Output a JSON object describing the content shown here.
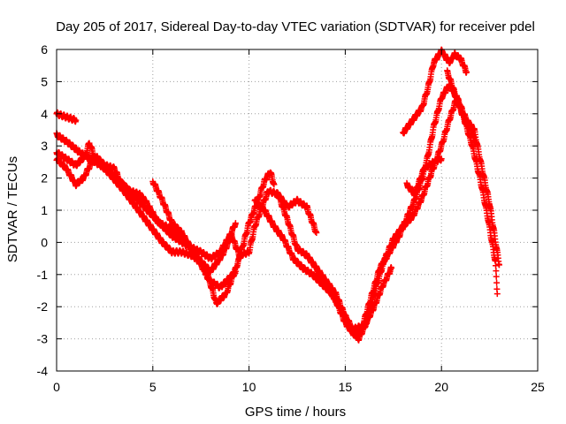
{
  "chart_data": {
    "type": "scatter",
    "title": "Day 205 of 2017, Sidereal Day-to-day VTEC variation (SDTVAR) for receiver pdel",
    "xlabel": "GPS time / hours",
    "ylabel": "SDTVAR / TECUs",
    "xlim": [
      0,
      25
    ],
    "ylim": [
      -4,
      6
    ],
    "xticks": [
      0,
      5,
      10,
      15,
      20,
      25
    ],
    "yticks": [
      -4,
      -3,
      -2,
      -1,
      0,
      1,
      2,
      3,
      4,
      5,
      6
    ],
    "grid": true,
    "marker": "+",
    "series": [
      {
        "name": "satellite tracks",
        "color": "#ff0000",
        "tracks": [
          [
            [
              0.0,
              4.0
            ],
            [
              0.5,
              3.9
            ],
            [
              1.0,
              3.8
            ]
          ],
          [
            [
              0.0,
              3.35
            ],
            [
              0.6,
              3.1
            ],
            [
              1.2,
              2.8
            ],
            [
              2.0,
              2.5
            ],
            [
              2.8,
              2.2
            ],
            [
              3.6,
              1.7
            ],
            [
              4.4,
              1.2
            ],
            [
              5.2,
              0.7
            ],
            [
              6.0,
              0.2
            ],
            [
              6.8,
              -0.1
            ],
            [
              7.5,
              -0.3
            ],
            [
              8.0,
              -0.5
            ],
            [
              8.5,
              -0.3
            ],
            [
              9.0,
              0.2
            ],
            [
              9.3,
              0.6
            ]
          ],
          [
            [
              0.0,
              2.8
            ],
            [
              0.5,
              2.6
            ],
            [
              1.0,
              2.4
            ],
            [
              1.5,
              2.7
            ],
            [
              1.7,
              3.1
            ],
            [
              2.0,
              2.6
            ],
            [
              2.8,
              2.1
            ],
            [
              3.5,
              1.6
            ],
            [
              4.0,
              1.2
            ],
            [
              4.5,
              0.8
            ],
            [
              5.0,
              0.4
            ],
            [
              5.5,
              0.0
            ],
            [
              6.0,
              -0.3
            ],
            [
              6.5,
              -0.3
            ],
            [
              7.0,
              -0.4
            ],
            [
              7.5,
              -0.6
            ],
            [
              8.0,
              -1.3
            ],
            [
              8.3,
              -1.9
            ],
            [
              8.8,
              -1.6
            ],
            [
              9.2,
              -1.0
            ],
            [
              9.5,
              -0.5
            ],
            [
              10.0,
              0.6
            ],
            [
              10.4,
              1.2
            ],
            [
              10.8,
              1.9
            ],
            [
              11.1,
              2.2
            ],
            [
              11.3,
              1.8
            ]
          ],
          [
            [
              0.0,
              2.6
            ],
            [
              0.5,
              2.3
            ],
            [
              1.0,
              1.8
            ],
            [
              1.4,
              2.0
            ],
            [
              2.0,
              2.7
            ],
            [
              2.5,
              2.4
            ],
            [
              3.0,
              2.3
            ],
            [
              3.3,
              1.9
            ],
            [
              3.8,
              1.6
            ],
            [
              4.3,
              1.5
            ],
            [
              4.6,
              1.3
            ],
            [
              5.0,
              0.9
            ],
            [
              5.3,
              0.6
            ],
            [
              5.7,
              0.5
            ],
            [
              6.0,
              0.4
            ],
            [
              6.5,
              0.2
            ],
            [
              7.0,
              -0.2
            ],
            [
              7.5,
              -0.6
            ],
            [
              8.0,
              -0.9
            ],
            [
              8.6,
              -0.4
            ],
            [
              9.1,
              0.2
            ],
            [
              9.5,
              -0.4
            ],
            [
              10.0,
              -0.3
            ],
            [
              10.3,
              0.5
            ],
            [
              10.6,
              1.0
            ],
            [
              11.0,
              1.6
            ],
            [
              11.5,
              1.5
            ],
            [
              12.0,
              0.7
            ],
            [
              12.5,
              -0.2
            ],
            [
              13.0,
              -0.4
            ],
            [
              13.5,
              -0.8
            ],
            [
              14.0,
              -1.2
            ],
            [
              14.5,
              -1.6
            ],
            [
              15.0,
              -2.3
            ],
            [
              15.4,
              -2.7
            ],
            [
              15.9,
              -2.6
            ],
            [
              16.3,
              -1.8
            ],
            [
              16.8,
              -0.8
            ],
            [
              17.3,
              -0.3
            ],
            [
              17.8,
              0.2
            ],
            [
              18.3,
              0.9
            ],
            [
              18.6,
              1.3
            ],
            [
              19.0,
              2.0
            ],
            [
              19.3,
              2.7
            ],
            [
              19.6,
              3.6
            ],
            [
              20.0,
              4.5
            ],
            [
              20.4,
              4.9
            ],
            [
              20.8,
              4.5
            ],
            [
              21.2,
              3.8
            ],
            [
              21.6,
              3.0
            ],
            [
              22.0,
              2.0
            ],
            [
              22.4,
              0.8
            ],
            [
              22.8,
              -0.6
            ],
            [
              22.9,
              -1.6
            ]
          ],
          [
            [
              5.0,
              1.9
            ],
            [
              5.5,
              1.3
            ],
            [
              6.0,
              0.6
            ],
            [
              6.5,
              0.3
            ],
            [
              7.0,
              -0.2
            ],
            [
              7.5,
              -0.7
            ],
            [
              8.0,
              -1.2
            ],
            [
              8.5,
              -1.4
            ],
            [
              9.0,
              -1.1
            ],
            [
              9.3,
              -0.9
            ]
          ],
          [
            [
              10.3,
              1.3
            ],
            [
              10.8,
              1.0
            ],
            [
              11.3,
              0.5
            ],
            [
              11.8,
              0.1
            ],
            [
              12.3,
              -0.5
            ],
            [
              12.8,
              -0.8
            ],
            [
              13.3,
              -1.0
            ],
            [
              13.8,
              -1.3
            ],
            [
              14.3,
              -1.6
            ],
            [
              14.8,
              -2.1
            ],
            [
              15.3,
              -2.7
            ],
            [
              15.7,
              -3.0
            ],
            [
              16.1,
              -2.5
            ],
            [
              16.6,
              -1.4
            ],
            [
              17.0,
              -0.6
            ],
            [
              17.5,
              0.1
            ],
            [
              18.0,
              0.5
            ],
            [
              18.5,
              0.8
            ],
            [
              19.0,
              1.4
            ],
            [
              19.5,
              2.2
            ],
            [
              20.0,
              3.0
            ],
            [
              20.4,
              3.8
            ],
            [
              20.8,
              4.5
            ],
            [
              21.3,
              3.8
            ],
            [
              21.7,
              3.5
            ],
            [
              22.0,
              2.6
            ],
            [
              22.5,
              1.2
            ],
            [
              23.0,
              -0.7
            ]
          ],
          [
            [
              11.5,
              1.5
            ],
            [
              12.0,
              1.1
            ],
            [
              12.5,
              1.3
            ],
            [
              13.0,
              1.1
            ],
            [
              13.5,
              0.3
            ]
          ],
          [
            [
              13.5,
              -1.0
            ],
            [
              14.0,
              -1.3
            ],
            [
              14.5,
              -1.8
            ],
            [
              15.0,
              -2.5
            ],
            [
              15.5,
              -2.9
            ],
            [
              16.0,
              -2.6
            ],
            [
              16.5,
              -2.0
            ],
            [
              16.9,
              -1.4
            ],
            [
              17.4,
              -0.8
            ]
          ],
          [
            [
              18.2,
              1.8
            ],
            [
              18.6,
              1.5
            ],
            [
              19.1,
              2.3
            ],
            [
              19.6,
              2.5
            ],
            [
              20.0,
              2.6
            ]
          ],
          [
            [
              18.0,
              3.4
            ],
            [
              18.5,
              3.8
            ],
            [
              19.0,
              4.2
            ],
            [
              19.3,
              4.8
            ],
            [
              19.6,
              5.6
            ],
            [
              20.0,
              5.95
            ],
            [
              20.4,
              5.6
            ],
            [
              20.7,
              5.85
            ],
            [
              21.0,
              5.7
            ],
            [
              21.3,
              5.3
            ]
          ],
          [
            [
              20.3,
              5.3
            ],
            [
              20.6,
              4.8
            ],
            [
              21.0,
              4.1
            ],
            [
              21.4,
              3.6
            ],
            [
              21.8,
              3.1
            ]
          ]
        ]
      }
    ]
  }
}
